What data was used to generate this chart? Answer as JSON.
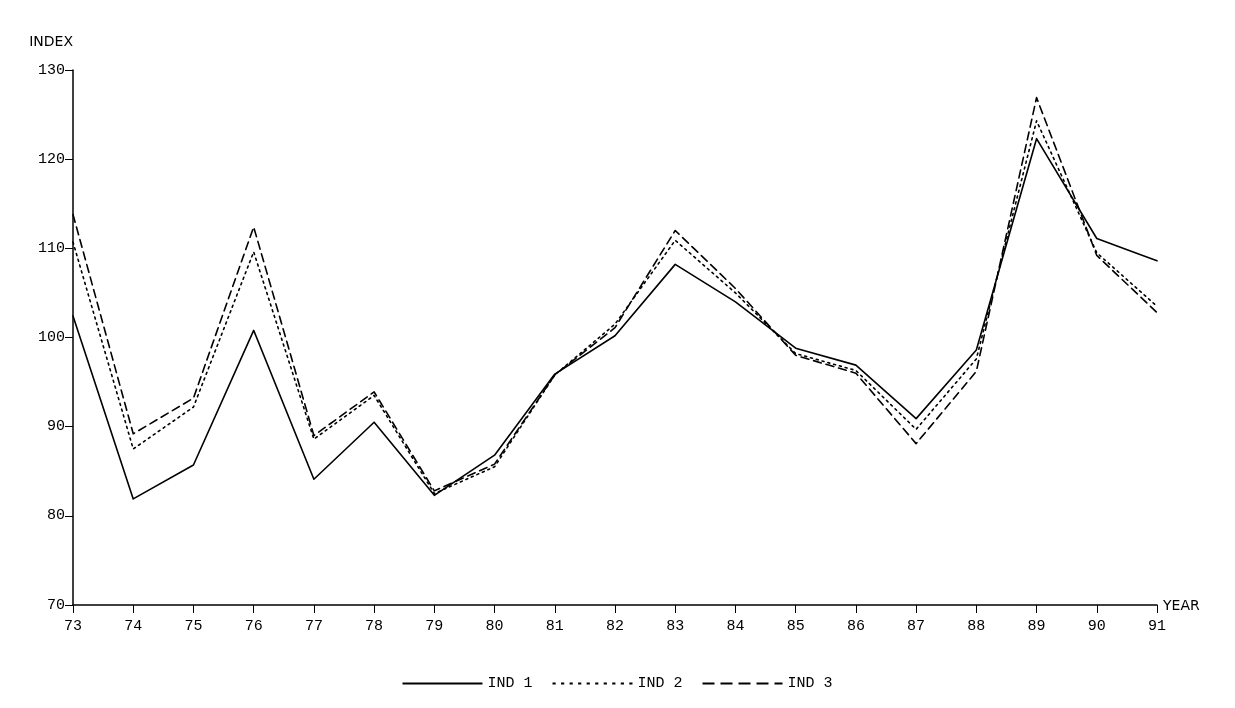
{
  "chart_data": {
    "type": "line",
    "xlabel": "YEAR",
    "ylabel": "INDEX",
    "categories": [
      "73",
      "74",
      "75",
      "76",
      "77",
      "78",
      "79",
      "80",
      "81",
      "82",
      "83",
      "84",
      "85",
      "86",
      "87",
      "88",
      "89",
      "90",
      "91"
    ],
    "ylim": [
      70,
      130
    ],
    "yticks": [
      70,
      80,
      90,
      100,
      110,
      120,
      130
    ],
    "grid": false,
    "legend": "bottom",
    "marker": "none",
    "series": [
      {
        "name": "IND 1",
        "color": "#000000",
        "line_style": "solid",
        "values": [
          102.4,
          81.9,
          85.7,
          100.8,
          84.1,
          90.5,
          82.3,
          86.8,
          95.9,
          100.2,
          108.2,
          104,
          98.8,
          96.9,
          90.9,
          98.6,
          122.3,
          111.1,
          108.6
        ]
      },
      {
        "name": "IND 2",
        "color": "#000000",
        "line_style": "dotted",
        "values": [
          110.7,
          87.5,
          92.2,
          109.6,
          88.6,
          93.5,
          82.5,
          85.5,
          95.8,
          101.5,
          110.9,
          105,
          98.2,
          96.3,
          89.7,
          97.6,
          124.3,
          109.5,
          103.5
        ]
      },
      {
        "name": "IND 3",
        "color": "#000000",
        "line_style": "dashed",
        "values": [
          113.8,
          89.2,
          93.2,
          112.4,
          89.0,
          93.9,
          82.8,
          85.8,
          95.8,
          101.1,
          112.0,
          105.5,
          98.0,
          96.0,
          88.1,
          96.2,
          126.9,
          109.2,
          102.8
        ]
      }
    ]
  }
}
